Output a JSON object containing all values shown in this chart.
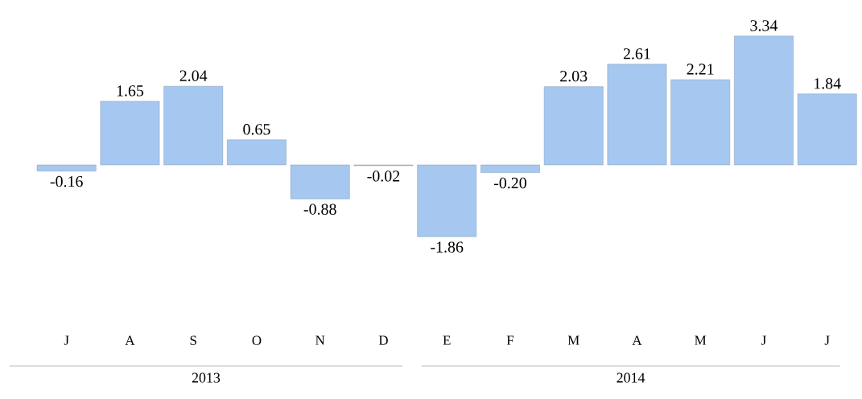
{
  "chart_data": {
    "type": "bar",
    "categories": [
      "J",
      "A",
      "S",
      "O",
      "N",
      "D",
      "E",
      "F",
      "M",
      "A",
      "M",
      "J",
      "J"
    ],
    "values": [
      -0.16,
      1.65,
      2.04,
      0.65,
      -0.88,
      -0.02,
      -1.86,
      -0.2,
      2.03,
      2.61,
      2.21,
      3.34,
      1.84
    ],
    "value_labels": [
      "-0.16",
      "1.65",
      "2.04",
      "0.65",
      "-0.88",
      "-0.02",
      "-1.86",
      "-0.20",
      "2.03",
      "2.61",
      "2.21",
      "3.34",
      "1.84"
    ],
    "color": "#a6c8f0",
    "annotations": [
      "2013",
      "2014"
    ]
  }
}
